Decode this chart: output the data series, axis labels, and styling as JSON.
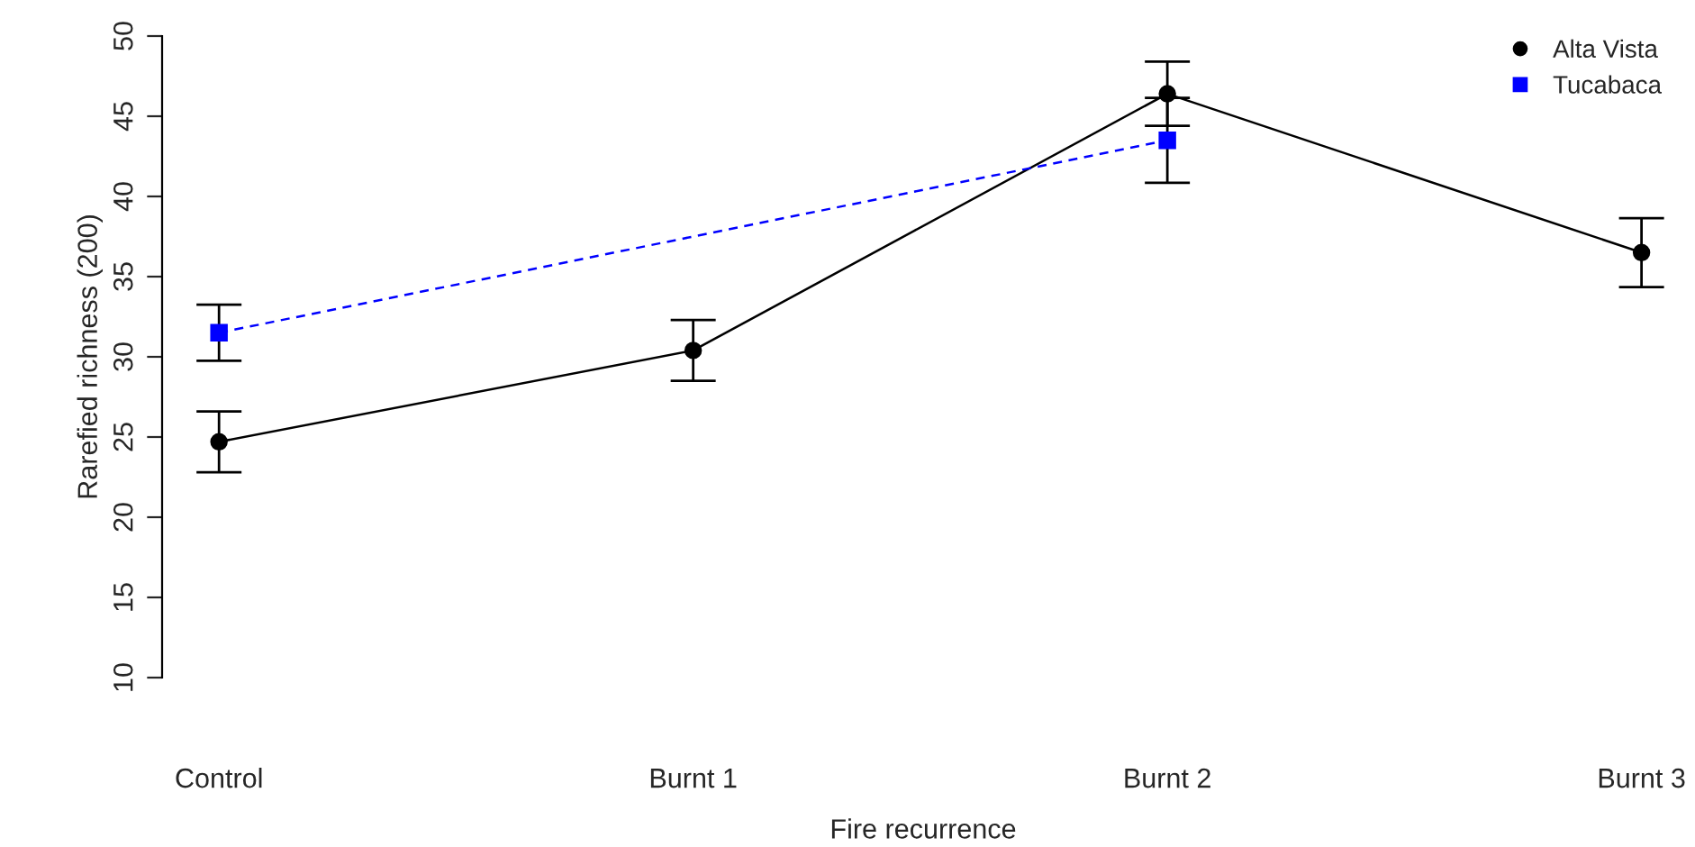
{
  "chart_data": {
    "type": "line",
    "xlabel": "Fire recurrence",
    "ylabel": "Rarefied richness (200)",
    "categories": [
      "Control",
      "Burnt 1",
      "Burnt 2",
      "Burnt 3"
    ],
    "series": [
      {
        "name": "Alta Vista",
        "color": "#000000",
        "marker": "circle",
        "line_style": "solid",
        "values": [
          24.7,
          30.4,
          46.4,
          36.5
        ],
        "errors": [
          1.9,
          1.9,
          2.0,
          2.15
        ]
      },
      {
        "name": "Tucabaca",
        "color": "#0000ff",
        "marker": "square",
        "line_style": "dashed",
        "values": [
          31.5,
          null,
          43.5,
          null
        ],
        "errors": [
          1.75,
          null,
          2.65,
          null
        ]
      }
    ],
    "ylim": [
      10,
      50
    ],
    "yticks": [
      10,
      15,
      20,
      25,
      30,
      35,
      40,
      45,
      50
    ],
    "grid": false,
    "legend": "top right"
  }
}
